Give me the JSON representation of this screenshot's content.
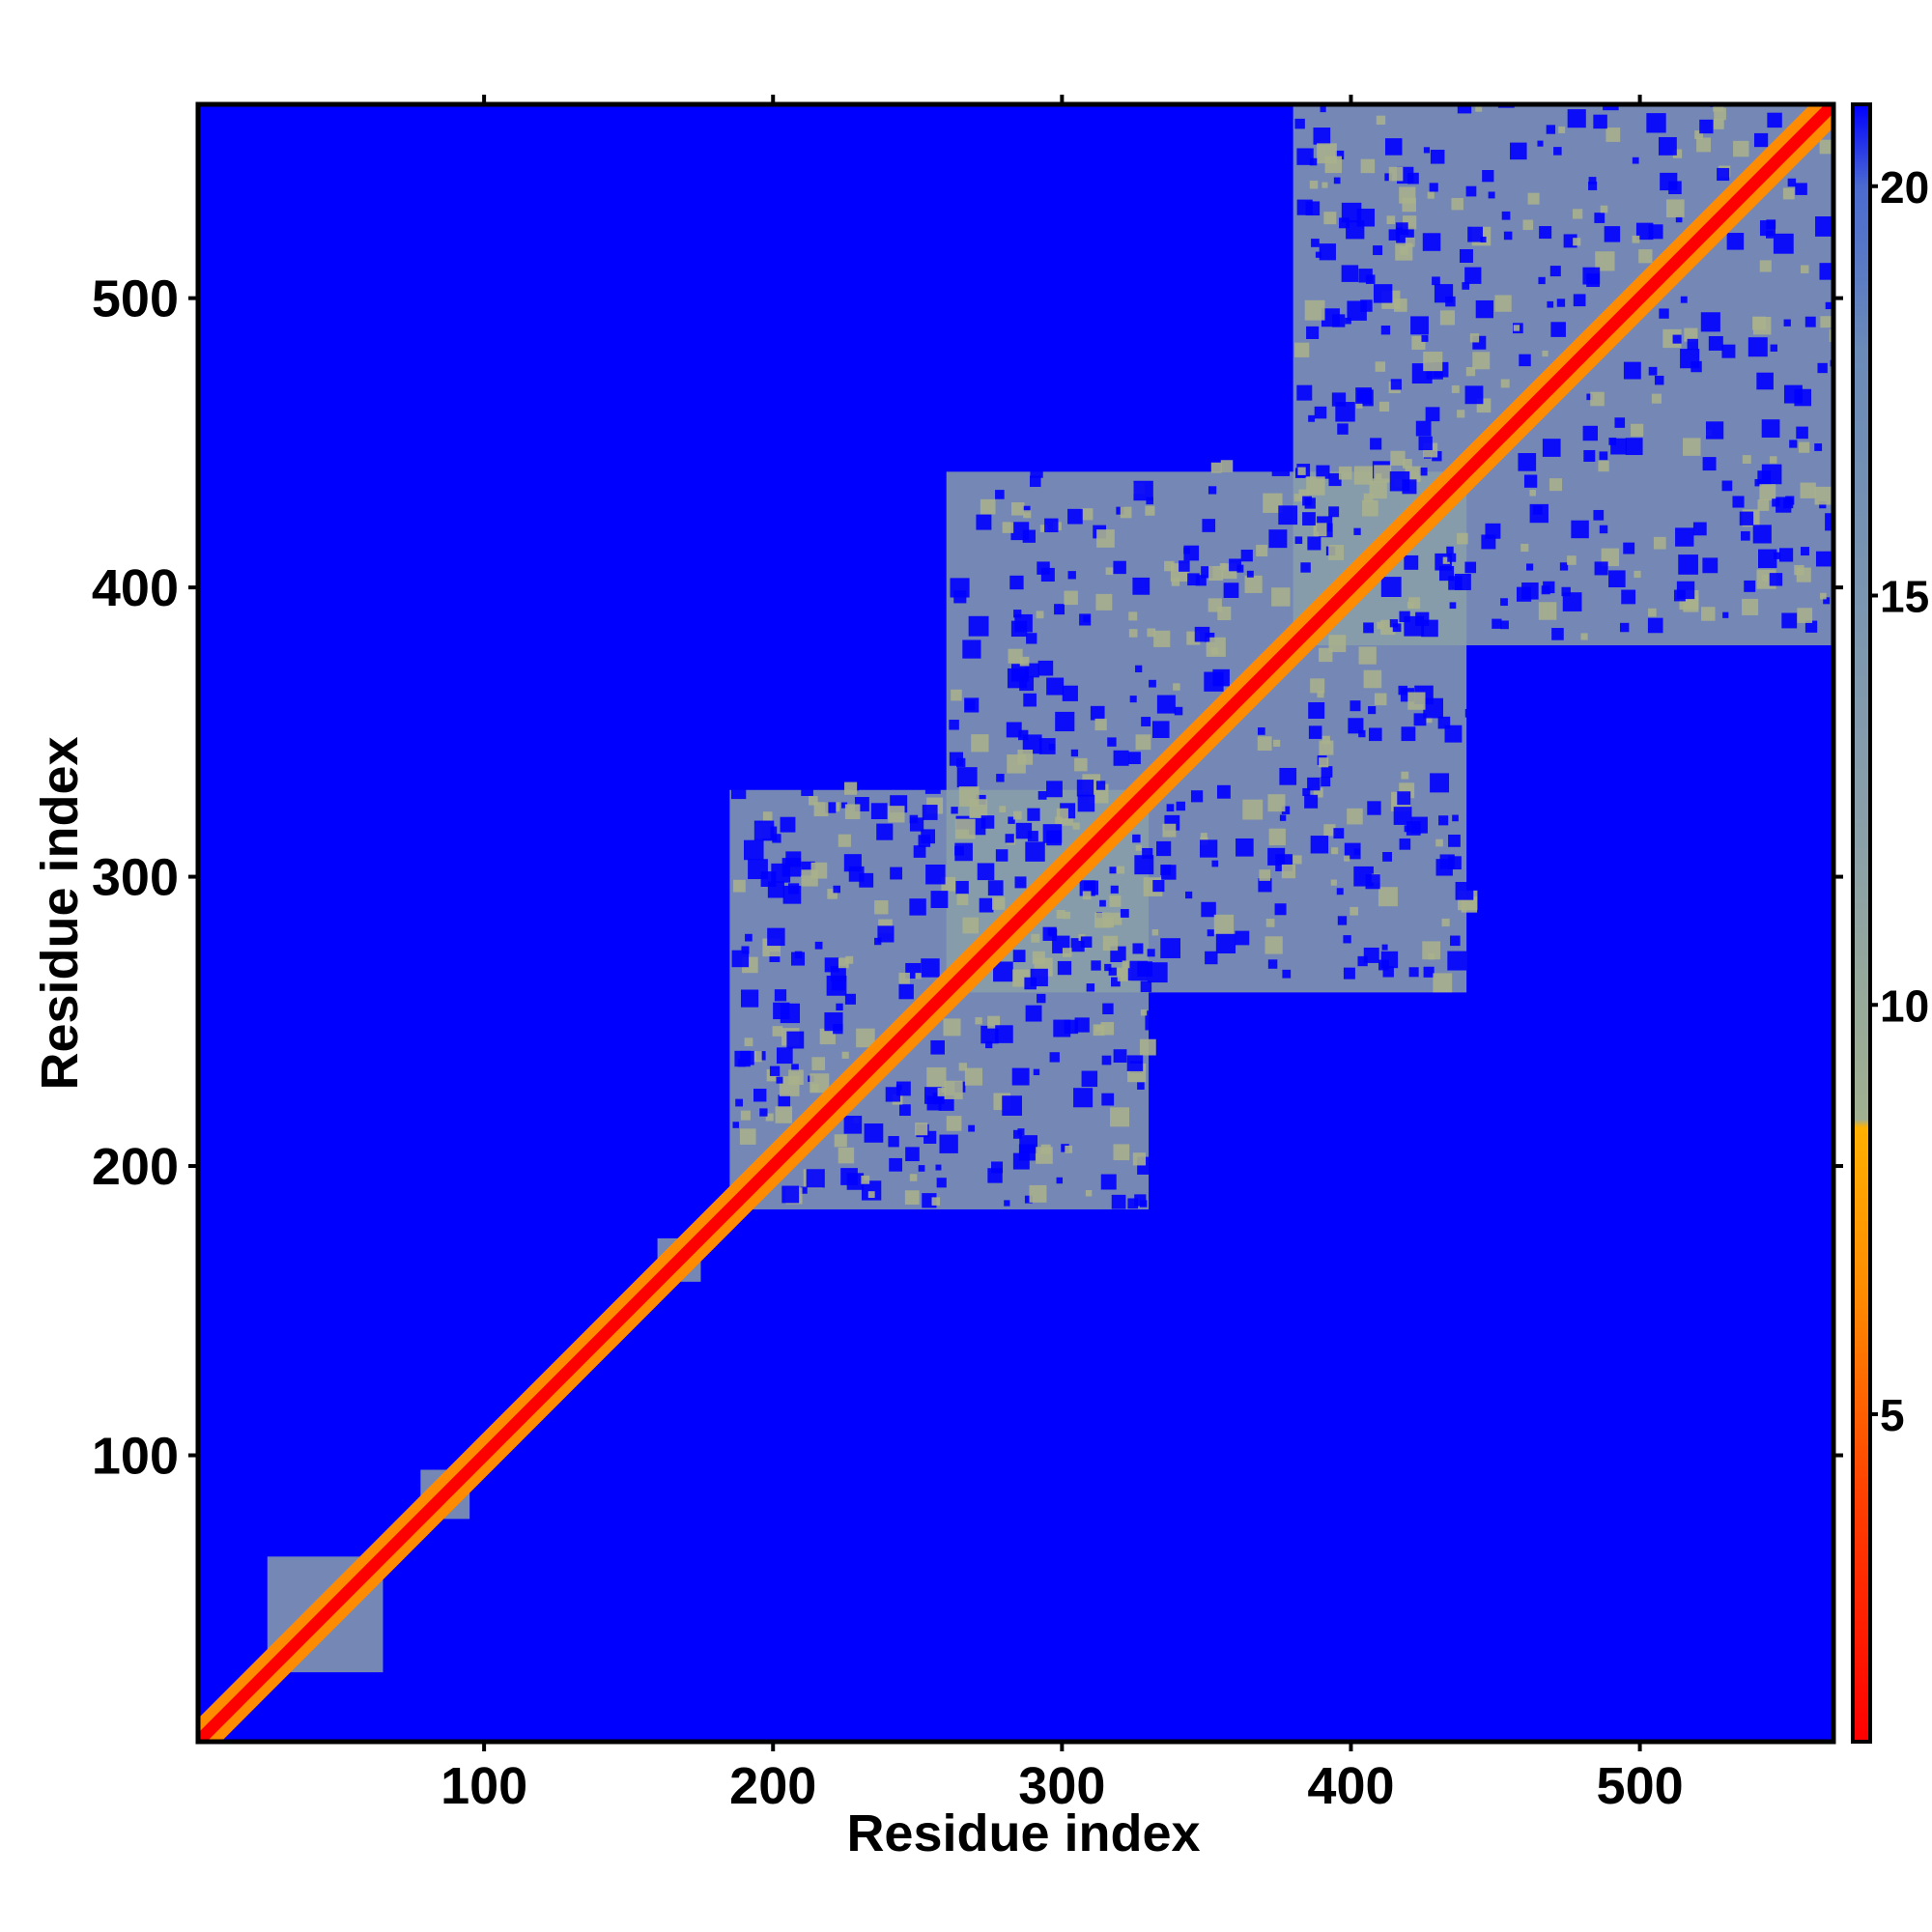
{
  "chart_data": {
    "type": "heatmap",
    "title": "",
    "xlabel": "Residue index",
    "ylabel": "Residue index",
    "xlim": [
      1,
      567
    ],
    "ylim": [
      1,
      567
    ],
    "x_ticks": [
      100,
      200,
      300,
      400,
      500
    ],
    "y_ticks": [
      100,
      200,
      300,
      400,
      500
    ],
    "colorbar": {
      "min": 1,
      "max": 21,
      "ticks": [
        5,
        10,
        15,
        20
      ],
      "stops": [
        {
          "value": 1,
          "color": "#ff0000"
        },
        {
          "value": 4,
          "color": "#ff4000"
        },
        {
          "value": 6.5,
          "color": "#ff8c00"
        },
        {
          "value": 8.5,
          "color": "#ffb000"
        },
        {
          "value": 8.6,
          "color": "#a0b090"
        },
        {
          "value": 12,
          "color": "#8aa0a8"
        },
        {
          "value": 18,
          "color": "#6a8ab8"
        },
        {
          "value": 20,
          "color": "#4a6ad0"
        },
        {
          "value": 21,
          "color": "#0000ff"
        }
      ]
    },
    "background_value": 21,
    "colors": {
      "background": "#0000ff",
      "contact_region": "#6f8fb8",
      "contact_dense": "#a8b08c",
      "close": "#ff8c00",
      "diagonal": "#ff0000"
    },
    "regions": [
      {
        "x": [
          25,
          65
        ],
        "y": [
          25,
          65
        ],
        "value": 13
      },
      {
        "x": [
          78,
          95
        ],
        "y": [
          78,
          95
        ],
        "value": 13
      },
      {
        "x": [
          160,
          175
        ],
        "y": [
          160,
          175
        ],
        "value": 14
      },
      {
        "x": [
          185,
          330
        ],
        "y": [
          185,
          330
        ],
        "value": 15
      },
      {
        "x": [
          260,
          440
        ],
        "y": [
          260,
          440
        ],
        "value": 16
      },
      {
        "x": [
          380,
          567
        ],
        "y": [
          380,
          567
        ],
        "value": 15
      }
    ],
    "diagonal_band": {
      "offset_max": 3,
      "value": 1
    },
    "helical_band": {
      "offset_max": 8,
      "value": 7
    }
  }
}
